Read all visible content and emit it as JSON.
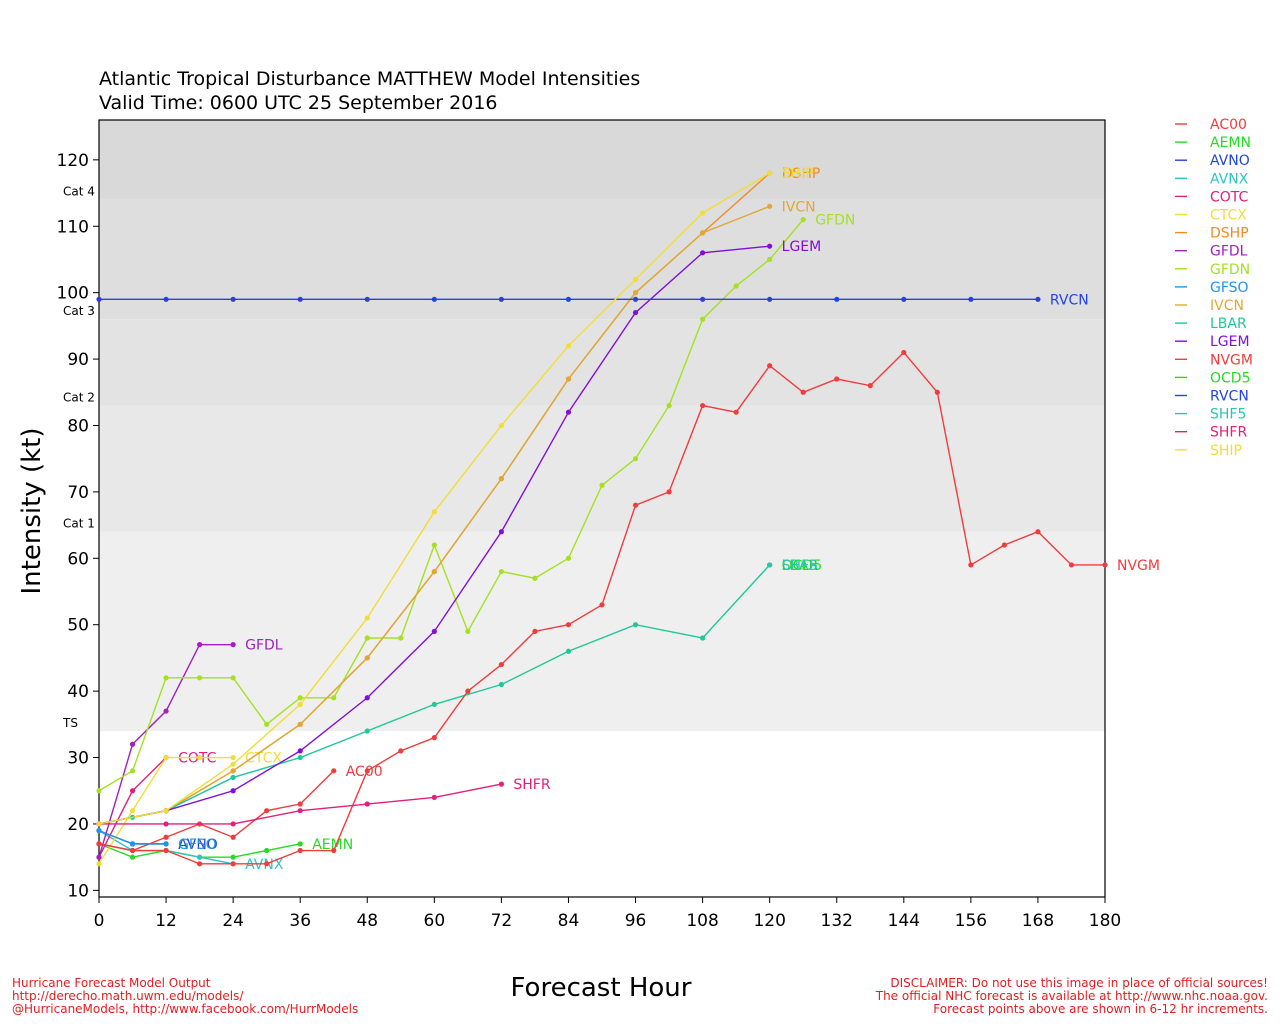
{
  "title_line1": "Atlantic Tropical Disturbance MATTHEW Model Intensities",
  "title_line2": "Valid Time: 0600 UTC 25 September 2016",
  "footer_left": [
    "Hurricane Forecast Model Output",
    "http://derecho.math.uwm.edu/models/",
    "@HurricaneModels, http://www.facebook.com/HurrModels"
  ],
  "footer_right": [
    "DISCLAIMER: Do not use this image in place of official sources!",
    "The official NHC forecast is available at http://www.nhc.noaa.gov.",
    "Forecast points above are shown in 6-12 hr increments."
  ],
  "chart_data": {
    "type": "line",
    "xlabel": "Forecast Hour",
    "ylabel": "Intensity (kt)",
    "xlim": [
      0,
      180
    ],
    "ylim": [
      9,
      126
    ],
    "xticks": [
      0,
      12,
      24,
      36,
      48,
      60,
      72,
      84,
      96,
      108,
      120,
      132,
      144,
      156,
      168,
      180
    ],
    "yticks": [
      10,
      20,
      30,
      40,
      50,
      60,
      70,
      80,
      90,
      100,
      110,
      120
    ],
    "grid": false,
    "legend_position": "right",
    "intensity_bands": [
      {
        "label": "",
        "from": 9,
        "to": 34,
        "color": "#ffffff"
      },
      {
        "label": "TS",
        "from": 34,
        "to": 64,
        "color": "#efefef"
      },
      {
        "label": "Cat 1",
        "from": 64,
        "to": 83,
        "color": "#e8e8e8"
      },
      {
        "label": "Cat 2",
        "from": 83,
        "to": 96,
        "color": "#e3e3e3"
      },
      {
        "label": "Cat 3",
        "from": 96,
        "to": 114,
        "color": "#dedede"
      },
      {
        "label": "Cat 4",
        "from": 114,
        "to": 126,
        "color": "#d9d9d9"
      }
    ],
    "series": [
      {
        "name": "AC00",
        "color": "#f03c3c",
        "label": "AC00",
        "x": [
          0,
          6,
          12,
          18,
          24,
          30,
          36,
          42
        ],
        "y": [
          17,
          16,
          18,
          20,
          18,
          22,
          23,
          28
        ]
      },
      {
        "name": "AEMN",
        "color": "#22dd22",
        "label": "AEMN",
        "x": [
          0,
          6,
          12,
          18,
          24,
          30,
          36
        ],
        "y": [
          17,
          15,
          16,
          15,
          15,
          16,
          17
        ]
      },
      {
        "name": "AVNO",
        "color": "#2244dd",
        "label": "AVNO",
        "x": [
          0,
          6,
          12
        ],
        "y": [
          19,
          17,
          17
        ]
      },
      {
        "name": "AVNX",
        "color": "#2fc4c4",
        "label": "AVNX",
        "x": [
          0,
          6,
          12,
          18,
          24
        ],
        "y": [
          19,
          16,
          16,
          15,
          14
        ]
      },
      {
        "name": "COTC",
        "color": "#e0207a",
        "label": "COTC",
        "x": [
          0,
          6,
          12
        ],
        "y": [
          15,
          25,
          30
        ]
      },
      {
        "name": "CTCX",
        "color": "#f2dc36",
        "label": "CTCX",
        "x": [
          0,
          6,
          12,
          18,
          24
        ],
        "y": [
          14,
          22,
          30,
          30,
          30
        ]
      },
      {
        "name": "DSHP",
        "color": "#f08c22",
        "label": "DSHP",
        "x": [
          0,
          12,
          24,
          36,
          48,
          60,
          72,
          84,
          96,
          108,
          120
        ],
        "y": [
          20,
          22,
          28,
          35,
          45,
          58,
          72,
          87,
          100,
          109,
          118
        ]
      },
      {
        "name": "GFDL",
        "color": "#a020c0",
        "label": "GFDL",
        "x": [
          0,
          6,
          12,
          18,
          24
        ],
        "y": [
          15,
          32,
          37,
          47,
          47
        ]
      },
      {
        "name": "GFDN",
        "color": "#a6e022",
        "label": "GFDN",
        "x": [
          0,
          6,
          12,
          18,
          24,
          30,
          36,
          42,
          48,
          54,
          60,
          66,
          72,
          78,
          84,
          90,
          96,
          102,
          108,
          114,
          120,
          126
        ],
        "y": [
          25,
          28,
          42,
          42,
          42,
          35,
          39,
          39,
          48,
          48,
          62,
          49,
          58,
          57,
          60,
          71,
          75,
          83,
          96,
          101,
          105,
          111
        ]
      },
      {
        "name": "GFSO",
        "color": "#2094e8",
        "label": "GFSO",
        "x": [
          0,
          6,
          12
        ],
        "y": [
          19,
          17,
          17
        ]
      },
      {
        "name": "IVCN",
        "color": "#e0a838",
        "label": "IVCN",
        "x": [
          0,
          12,
          24,
          36,
          48,
          60,
          72,
          84,
          96,
          108,
          120
        ],
        "y": [
          20,
          22,
          28,
          35,
          45,
          58,
          72,
          87,
          100,
          109,
          113
        ]
      },
      {
        "name": "LBAR",
        "color": "#1ec898",
        "label": "LBAR",
        "x": [
          0,
          6,
          12,
          24,
          36,
          48,
          60,
          72,
          84,
          96,
          108,
          120
        ],
        "y": [
          20,
          21,
          22,
          27,
          30,
          34,
          38,
          41,
          46,
          50,
          48,
          59
        ]
      },
      {
        "name": "LGEM",
        "color": "#8010d8",
        "label": "LGEM",
        "x": [
          0,
          12,
          24,
          36,
          48,
          60,
          72,
          84,
          96,
          108,
          120
        ],
        "y": [
          20,
          22,
          25,
          31,
          39,
          49,
          64,
          82,
          97,
          106,
          107
        ]
      },
      {
        "name": "NVGM",
        "color": "#f03c3c",
        "label": "NVGM",
        "x": [
          0,
          6,
          12,
          18,
          24,
          30,
          36,
          42,
          48,
          54,
          60,
          66,
          72,
          78,
          84,
          90,
          96,
          102,
          108,
          114,
          120,
          126,
          132,
          138,
          144,
          150,
          156,
          162,
          168,
          174,
          180
        ],
        "y": [
          17,
          16,
          16,
          14,
          14,
          14,
          16,
          16,
          28,
          31,
          33,
          40,
          44,
          49,
          50,
          53,
          68,
          70,
          83,
          82,
          89,
          85,
          87,
          86,
          91,
          85,
          59,
          62,
          64,
          59,
          59
        ]
      },
      {
        "name": "OCD5",
        "color": "#22dd22",
        "label": "OCD5",
        "x": [
          120
        ],
        "y": [
          59
        ]
      },
      {
        "name": "RVCN",
        "color": "#2244dd",
        "label": "RVCN",
        "x": [
          0,
          12,
          24,
          36,
          48,
          60,
          72,
          84,
          96,
          108,
          120,
          132,
          144,
          156,
          168
        ],
        "y": [
          99,
          99,
          99,
          99,
          99,
          99,
          99,
          99,
          99,
          99,
          99,
          99,
          99,
          99,
          99
        ]
      },
      {
        "name": "SHF5",
        "color": "#2fc4b0",
        "label": "SHF5",
        "x": [
          120
        ],
        "y": [
          59
        ]
      },
      {
        "name": "SHFR",
        "color": "#e0207a",
        "label": "SHFR",
        "x": [
          0,
          12,
          24,
          36,
          48,
          60,
          72
        ],
        "y": [
          20,
          20,
          20,
          22,
          23,
          24,
          26
        ]
      },
      {
        "name": "SHIP",
        "color": "#f2dc36",
        "label": "SHIP",
        "x": [
          0,
          12,
          24,
          36,
          48,
          60,
          72,
          84,
          96,
          108,
          120
        ],
        "y": [
          20,
          22,
          29,
          38,
          51,
          67,
          80,
          92,
          102,
          112,
          118
        ]
      }
    ]
  }
}
